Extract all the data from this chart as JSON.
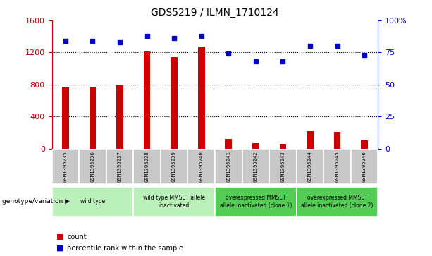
{
  "title": "GDS5219 / ILMN_1710124",
  "samples": [
    "GSM1395235",
    "GSM1395236",
    "GSM1395237",
    "GSM1395238",
    "GSM1395239",
    "GSM1395240",
    "GSM1395241",
    "GSM1395242",
    "GSM1395243",
    "GSM1395244",
    "GSM1395245",
    "GSM1395246"
  ],
  "counts": [
    760,
    770,
    800,
    1220,
    1140,
    1270,
    120,
    65,
    60,
    220,
    210,
    105
  ],
  "percentiles": [
    84,
    84,
    83,
    88,
    86,
    88,
    74,
    68,
    68,
    80,
    80,
    73
  ],
  "ylim_left": [
    0,
    1600
  ],
  "ylim_right": [
    0,
    100
  ],
  "yticks_left": [
    0,
    400,
    800,
    1200,
    1600
  ],
  "yticks_right": [
    0,
    25,
    50,
    75,
    100
  ],
  "yticklabels_right": [
    "0",
    "25",
    "50",
    "75",
    "100%"
  ],
  "groups": [
    {
      "label": "wild type",
      "start": 0,
      "end": 2,
      "color": "#bbf0bb"
    },
    {
      "label": "wild type MMSET allele\ninactivated",
      "start": 3,
      "end": 5,
      "color": "#bbf0bb"
    },
    {
      "label": "overexpressed MMSET\nallele inactivated (clone 1)",
      "start": 6,
      "end": 8,
      "color": "#55cc55"
    },
    {
      "label": "overexpressed MMSET\nallele inactivated (clone 2)",
      "start": 9,
      "end": 11,
      "color": "#55cc55"
    }
  ],
  "bar_color": "#cc0000",
  "dot_color": "#0000cc",
  "grid_color": "#000000",
  "legend_label_count": "count",
  "legend_label_percentile": "percentile rank within the sample",
  "xlabel_genotype": "genotype/variation",
  "tick_bg_color": "#c8c8c8",
  "bar_width": 0.25
}
